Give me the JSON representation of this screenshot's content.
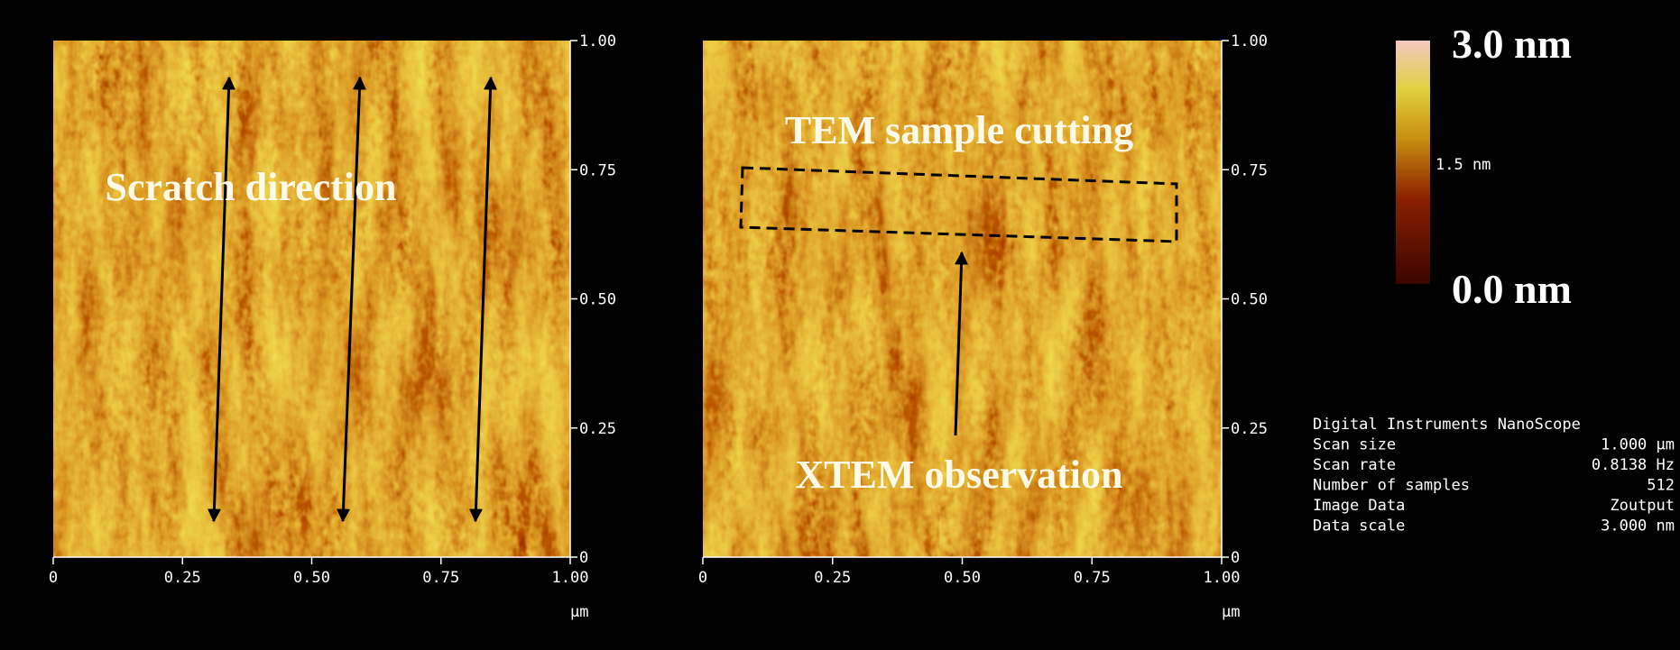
{
  "panels": [
    {
      "xticks": [
        "0",
        "0.25",
        "0.50",
        "0.75",
        "1.00"
      ],
      "yticks": [
        "1.00",
        "0.75",
        "0.50",
        "0.25",
        "0"
      ],
      "unit": "μm",
      "annotations": [
        "Scratch direction"
      ]
    },
    {
      "xticks": [
        "0",
        "0.25",
        "0.50",
        "0.75",
        "1.00"
      ],
      "yticks": [
        "1.00",
        "0.75",
        "0.50",
        "0.25",
        "0"
      ],
      "unit": "μm",
      "annotations": [
        "TEM sample cutting",
        "XTEM observation"
      ]
    }
  ],
  "colorbar": {
    "max": "3.0 nm",
    "mid": "1.5 nm",
    "min": "0.0 nm"
  },
  "info": {
    "title": "Digital Instruments NanoScope",
    "rows": [
      [
        "Scan size",
        "1.000 μm"
      ],
      [
        "Scan rate",
        "0.8138 Hz"
      ],
      [
        "Number of samples",
        "512"
      ],
      [
        "Image Data",
        "Zoutput"
      ],
      [
        "Data scale",
        "3.000 nm"
      ]
    ]
  }
}
